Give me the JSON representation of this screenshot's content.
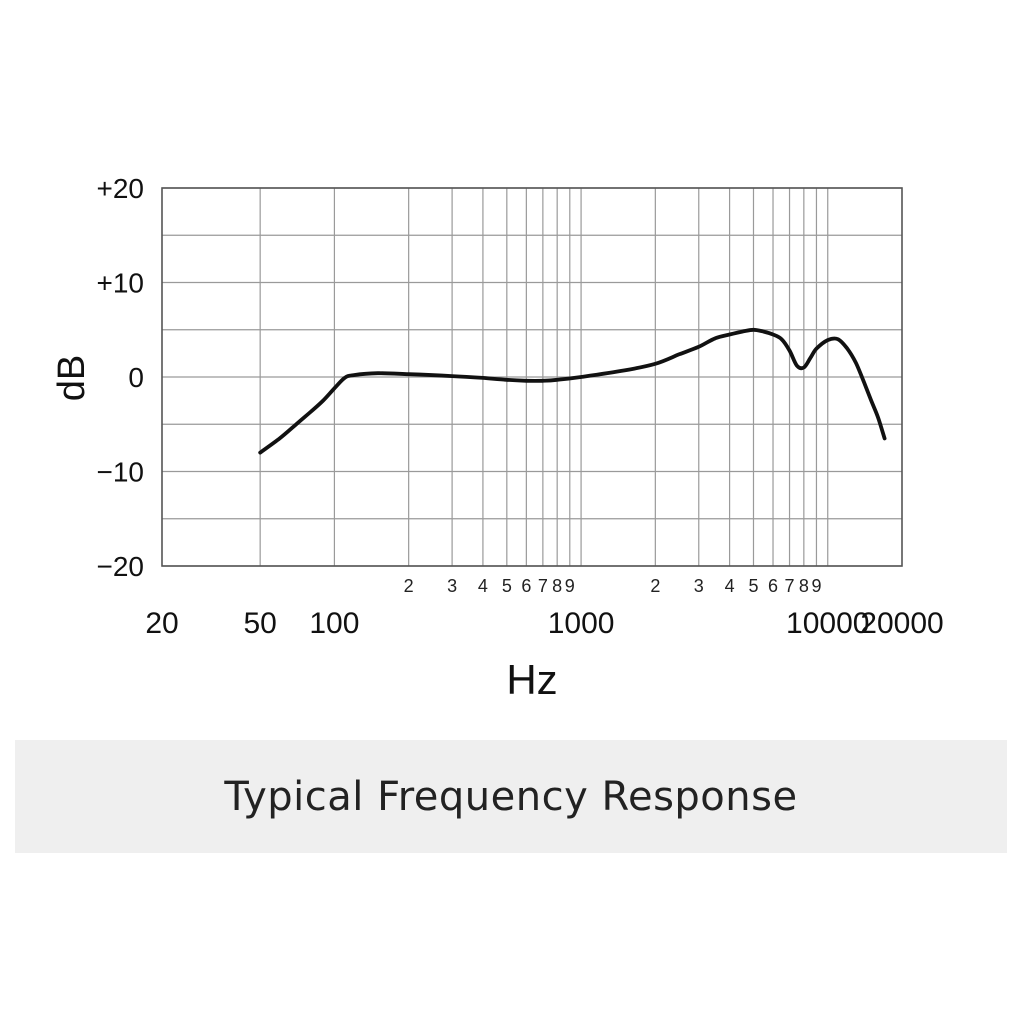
{
  "caption": "Typical Frequency Response",
  "chart_data": {
    "type": "line",
    "title": "",
    "xlabel": "Hz",
    "ylabel": "dB",
    "x_scale": "log",
    "xlim": [
      20,
      20000
    ],
    "ylim": [
      -20,
      20
    ],
    "grid": true,
    "y_ticks": [
      {
        "value": 20,
        "label": "+20"
      },
      {
        "value": 10,
        "label": "+10"
      },
      {
        "value": 0,
        "label": "0"
      },
      {
        "value": -10,
        "label": "−10"
      },
      {
        "value": -20,
        "label": "−20"
      }
    ],
    "y_minor_ticks": [
      15,
      5,
      -5,
      -15
    ],
    "x_major_ticks": [
      {
        "value": 20,
        "label": "20"
      },
      {
        "value": 50,
        "label": "50"
      },
      {
        "value": 100,
        "label": "100"
      },
      {
        "value": 1000,
        "label": "1000"
      },
      {
        "value": 10000,
        "label": "10000"
      },
      {
        "value": 20000,
        "label": "20000"
      }
    ],
    "x_minor_ticks": [
      {
        "value": 200,
        "label": "2"
      },
      {
        "value": 300,
        "label": "3"
      },
      {
        "value": 400,
        "label": "4"
      },
      {
        "value": 500,
        "label": "5"
      },
      {
        "value": 600,
        "label": "6"
      },
      {
        "value": 700,
        "label": "7"
      },
      {
        "value": 800,
        "label": "8"
      },
      {
        "value": 900,
        "label": "9"
      },
      {
        "value": 2000,
        "label": "2"
      },
      {
        "value": 3000,
        "label": "3"
      },
      {
        "value": 4000,
        "label": "4"
      },
      {
        "value": 5000,
        "label": "5"
      },
      {
        "value": 6000,
        "label": "6"
      },
      {
        "value": 7000,
        "label": "7"
      },
      {
        "value": 8000,
        "label": "8"
      },
      {
        "value": 9000,
        "label": "9"
      }
    ],
    "series": [
      {
        "color": "#111111",
        "points": [
          [
            50,
            -8
          ],
          [
            60,
            -6.5
          ],
          [
            70,
            -5
          ],
          [
            80,
            -3.7
          ],
          [
            90,
            -2.5
          ],
          [
            100,
            -1.2
          ],
          [
            110,
            -0.1
          ],
          [
            120,
            0.2
          ],
          [
            150,
            0.4
          ],
          [
            200,
            0.3
          ],
          [
            300,
            0.1
          ],
          [
            400,
            -0.1
          ],
          [
            500,
            -0.3
          ],
          [
            600,
            -0.4
          ],
          [
            700,
            -0.4
          ],
          [
            800,
            -0.3
          ],
          [
            1000,
            0
          ],
          [
            1500,
            0.7
          ],
          [
            2000,
            1.4
          ],
          [
            2500,
            2.4
          ],
          [
            3000,
            3.2
          ],
          [
            3500,
            4.1
          ],
          [
            4000,
            4.5
          ],
          [
            4500,
            4.8
          ],
          [
            5000,
            5
          ],
          [
            5500,
            4.8
          ],
          [
            6000,
            4.5
          ],
          [
            6500,
            4
          ],
          [
            7000,
            2.8
          ],
          [
            7500,
            1.2
          ],
          [
            8000,
            1
          ],
          [
            8500,
            2
          ],
          [
            9000,
            3
          ],
          [
            10000,
            3.9
          ],
          [
            11000,
            4
          ],
          [
            12000,
            3
          ],
          [
            13000,
            1.5
          ],
          [
            14000,
            -0.5
          ],
          [
            15000,
            -2.5
          ],
          [
            16000,
            -4.3
          ],
          [
            17000,
            -6.5
          ]
        ]
      }
    ]
  }
}
